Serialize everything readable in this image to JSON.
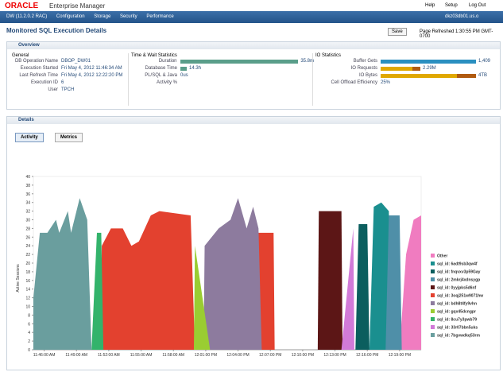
{
  "header": {
    "brand": "ORACLE",
    "product": "Enterprise Manager",
    "links": [
      "Help",
      "Setup",
      "Log Out"
    ]
  },
  "nav": {
    "target": "DW (11.2.0.2 RAC)",
    "menus": [
      "Configuration",
      "Storage",
      "Security",
      "Performance"
    ],
    "host": "dkz03db01.us.o"
  },
  "page": {
    "title": "Monitored SQL Execution Details",
    "save": "Save",
    "refreshed": "Page Refreshed 1:30:55 PM GMT-0700"
  },
  "overview": {
    "title": "Overview",
    "general": {
      "title": "General",
      "rows": [
        [
          "DB Operation Name",
          "DBOP_DW01"
        ],
        [
          "Execution Started",
          "Fri May 4, 2012 11:46:34 AM"
        ],
        [
          "Last Refresh Time",
          "Fri May 4, 2012 12:22:20 PM"
        ],
        [
          "Execution ID",
          "6"
        ],
        [
          "User",
          "TPCH"
        ]
      ]
    },
    "time": {
      "title": "Time & Wait Statistics",
      "rows": [
        [
          "Duration",
          "35.8m"
        ],
        [
          "Database Time",
          "14.3h"
        ],
        [
          "PL/SQL & Java",
          "0us"
        ],
        [
          "Activity %",
          ""
        ]
      ]
    },
    "io": {
      "title": "IO Statistics",
      "rows": [
        [
          "Buffer Gets",
          "1,409"
        ],
        [
          "IO Requests",
          "2.29M"
        ],
        [
          "IO Bytes",
          "4TB"
        ],
        [
          "Cell Offload Efficiency",
          "25%"
        ]
      ]
    }
  },
  "details": {
    "title": "Details",
    "tabs": [
      "Activity",
      "Metrics"
    ]
  },
  "chart_data": {
    "type": "area",
    "y_label": "Active Sessions",
    "xlim": [
      0,
      36
    ],
    "ylim": [
      0,
      40
    ],
    "yticks": [
      0,
      2,
      4,
      6,
      8,
      10,
      12,
      14,
      16,
      18,
      20,
      22,
      24,
      26,
      28,
      30,
      32,
      34,
      36,
      38,
      40
    ],
    "xticks": [
      {
        "value": 1,
        "label": "11:46:00 AM"
      },
      {
        "value": 4,
        "label": "11:49:00 AM"
      },
      {
        "value": 7,
        "label": "11:52:00 AM"
      },
      {
        "value": 10,
        "label": "11:55:00 AM"
      },
      {
        "value": 13,
        "label": "11:58:00 AM"
      },
      {
        "value": 16,
        "label": "12:01:00 PM"
      },
      {
        "value": 19,
        "label": "12:04:00 PM"
      },
      {
        "value": 22,
        "label": "12:07:00 PM"
      },
      {
        "value": 25,
        "label": "12:10:00 PM"
      },
      {
        "value": 28,
        "label": "12:13:00 PM"
      },
      {
        "value": 31,
        "label": "12:16:00 PM"
      },
      {
        "value": 34,
        "label": "12:19:00 PM"
      }
    ],
    "series": [
      {
        "name": "Other",
        "color": "#f07cc0",
        "x": [
          34.0,
          34.6,
          35.3,
          36.0
        ],
        "values": [
          0,
          22,
          30,
          31
        ]
      },
      {
        "name": "sql_id: 6adt9sb3qw4f",
        "color": "#1a8f8f",
        "x": [
          31.2,
          31.6,
          32.3,
          33.0,
          33.3
        ],
        "values": [
          0,
          33,
          34,
          32,
          0
        ]
      },
      {
        "name": "sql_id: fnqvxv3p59Gay",
        "color": "#0b5e5e",
        "x": [
          29.9,
          30.2,
          31.0,
          31.2
        ],
        "values": [
          0,
          29,
          29,
          0
        ]
      },
      {
        "name": "sql_id: 2mkrj4xdnsygp",
        "color": "#4f8fa8",
        "x": [
          32.7,
          33.0,
          34.0,
          34.2
        ],
        "values": [
          0,
          31,
          31,
          0
        ]
      },
      {
        "name": "sql_id: 0yyjpks5d6nf",
        "color": "#5c1616",
        "x": [
          26.4,
          26.5,
          28.6,
          28.7
        ],
        "values": [
          0,
          32,
          32,
          0
        ]
      },
      {
        "name": "sql_id: 3oqj251w9071hw",
        "color": "#e3412f",
        "x": [
          6.3,
          6.35,
          7.2,
          8.3,
          9.1,
          9.8,
          10.9,
          11.7,
          14.6,
          15.0,
          null,
          20.6,
          20.7,
          22.3,
          22.4
        ],
        "values": [
          0,
          24,
          28,
          28,
          24,
          25,
          31,
          32,
          31,
          0,
          null,
          0,
          27,
          27,
          0
        ]
      },
      {
        "name": "sql_id: bdh8t4fy9vhn",
        "color": "#8d7b9e",
        "x": [
          15.8,
          15.9,
          17.2,
          18.3,
          19.0,
          19.8,
          20.4,
          20.9,
          21.2
        ],
        "values": [
          0,
          24,
          28,
          30,
          35,
          28,
          33,
          28,
          0
        ]
      },
      {
        "name": "sql_id: gqx45dcngpr",
        "color": "#9acd32",
        "x": [
          14.9,
          15.0,
          16.4
        ],
        "values": [
          0,
          24,
          0
        ]
      },
      {
        "name": "sql_id: 8cu7y3pwb79",
        "color": "#33b36b",
        "x": [
          5.4,
          5.9,
          6.3,
          6.5
        ],
        "values": [
          0,
          27,
          27,
          0
        ]
      },
      {
        "name": "sql_id: 33r07bbn5uks",
        "color": "#d27ad8",
        "x": [
          28.6,
          29.7,
          29.8
        ],
        "values": [
          0,
          28,
          0
        ]
      },
      {
        "name": "sql_id: 7bgvwdkq53rm",
        "color": "#6a9e9e",
        "x": [
          0,
          0.6,
          1.3,
          2.1,
          2.4,
          3.2,
          3.5,
          4.3,
          5.0,
          5.4
        ],
        "values": [
          12,
          27,
          27,
          30,
          27,
          32,
          27,
          35,
          30,
          0
        ]
      }
    ]
  }
}
